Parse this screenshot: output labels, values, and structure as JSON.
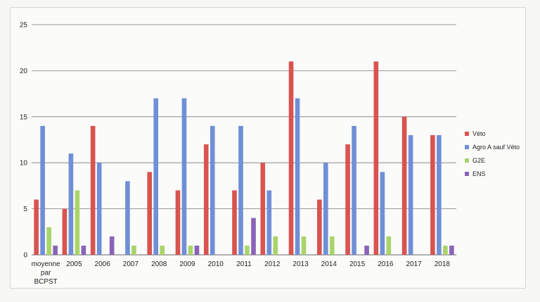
{
  "chart_data": {
    "type": "bar",
    "categories": [
      "moyenne\npar\nBCPST",
      "2005",
      "2006",
      "2007",
      "2008",
      "2009",
      "2010",
      "2011",
      "2012",
      "2013",
      "2014",
      "2015",
      "2016",
      "2017",
      "2018"
    ],
    "series": [
      {
        "name": "Véto",
        "color": "#d9534f",
        "values": [
          6,
          5,
          14,
          0,
          9,
          7,
          12,
          7,
          10,
          21,
          6,
          12,
          21,
          15,
          13
        ]
      },
      {
        "name": "Agro A sauf Véto",
        "color": "#6f8fd6",
        "values": [
          14,
          11,
          10,
          8,
          17,
          17,
          14,
          14,
          7,
          17,
          10,
          14,
          9,
          13,
          13
        ]
      },
      {
        "name": "G2E",
        "color": "#a9d46a",
        "values": [
          3,
          7,
          0,
          1,
          1,
          1,
          0,
          1,
          2,
          2,
          2,
          0,
          2,
          0,
          1
        ]
      },
      {
        "name": "ENS",
        "color": "#8a63b8",
        "values": [
          1,
          1,
          2,
          0,
          0,
          1,
          0,
          4,
          0,
          0,
          0,
          1,
          0,
          0,
          1
        ]
      }
    ],
    "ylim": [
      0,
      25
    ],
    "yticks": [
      0,
      5,
      10,
      15,
      20,
      25
    ],
    "grid": true,
    "legend_position": "right",
    "title": "",
    "xlabel": "",
    "ylabel": ""
  }
}
